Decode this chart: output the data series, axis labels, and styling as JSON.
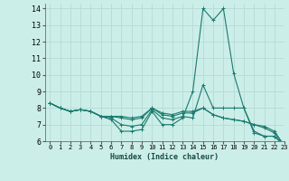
{
  "xlabel": "Humidex (Indice chaleur)",
  "background_color": "#cceee8",
  "grid_color": "#b8ddd8",
  "line_color": "#1a7a6e",
  "xlim": [
    -0.5,
    23
  ],
  "ylim": [
    6,
    14.3
  ],
  "yticks": [
    6,
    7,
    8,
    9,
    10,
    11,
    12,
    13,
    14
  ],
  "xticks": [
    0,
    1,
    2,
    3,
    4,
    5,
    6,
    7,
    8,
    9,
    10,
    11,
    12,
    13,
    14,
    15,
    16,
    17,
    18,
    19,
    20,
    21,
    22,
    23
  ],
  "series": [
    {
      "x": [
        0,
        1,
        2,
        3,
        4,
        5,
        6,
        7,
        8,
        9,
        10,
        11,
        12,
        13,
        14,
        15,
        16,
        17,
        18,
        19,
        20,
        21,
        22,
        23
      ],
      "y": [
        8.3,
        8.0,
        7.8,
        7.9,
        7.8,
        7.5,
        7.3,
        6.6,
        6.6,
        6.7,
        7.8,
        7.0,
        7.0,
        7.4,
        9.0,
        14.0,
        13.3,
        14.0,
        10.1,
        8.0,
        6.5,
        6.3,
        6.3,
        5.7
      ]
    },
    {
      "x": [
        0,
        1,
        2,
        3,
        4,
        5,
        6,
        7,
        8,
        9,
        10,
        11,
        12,
        13,
        14,
        15,
        16,
        17,
        18,
        19,
        20,
        21,
        22,
        23
      ],
      "y": [
        8.3,
        8.0,
        7.8,
        7.9,
        7.8,
        7.5,
        7.4,
        7.0,
        6.9,
        7.0,
        7.9,
        7.4,
        7.3,
        7.5,
        7.4,
        9.4,
        8.0,
        8.0,
        8.0,
        8.0,
        6.6,
        6.3,
        6.3,
        5.7
      ]
    },
    {
      "x": [
        0,
        1,
        2,
        3,
        4,
        5,
        6,
        7,
        8,
        9,
        10,
        11,
        12,
        13,
        14,
        15,
        16,
        17,
        18,
        19,
        20,
        21,
        22,
        23
      ],
      "y": [
        8.3,
        8.0,
        7.8,
        7.9,
        7.8,
        7.5,
        7.5,
        7.4,
        7.3,
        7.4,
        8.0,
        7.6,
        7.5,
        7.7,
        7.7,
        8.0,
        7.6,
        7.4,
        7.3,
        7.2,
        7.0,
        6.8,
        6.5,
        5.7
      ]
    },
    {
      "x": [
        0,
        1,
        2,
        3,
        4,
        5,
        6,
        7,
        8,
        9,
        10,
        11,
        12,
        13,
        14,
        15,
        16,
        17,
        18,
        19,
        20,
        21,
        22,
        23
      ],
      "y": [
        8.3,
        8.0,
        7.8,
        7.9,
        7.8,
        7.5,
        7.5,
        7.5,
        7.4,
        7.5,
        8.0,
        7.7,
        7.6,
        7.8,
        7.8,
        8.0,
        7.6,
        7.4,
        7.3,
        7.2,
        7.0,
        6.9,
        6.6,
        5.7
      ]
    }
  ]
}
